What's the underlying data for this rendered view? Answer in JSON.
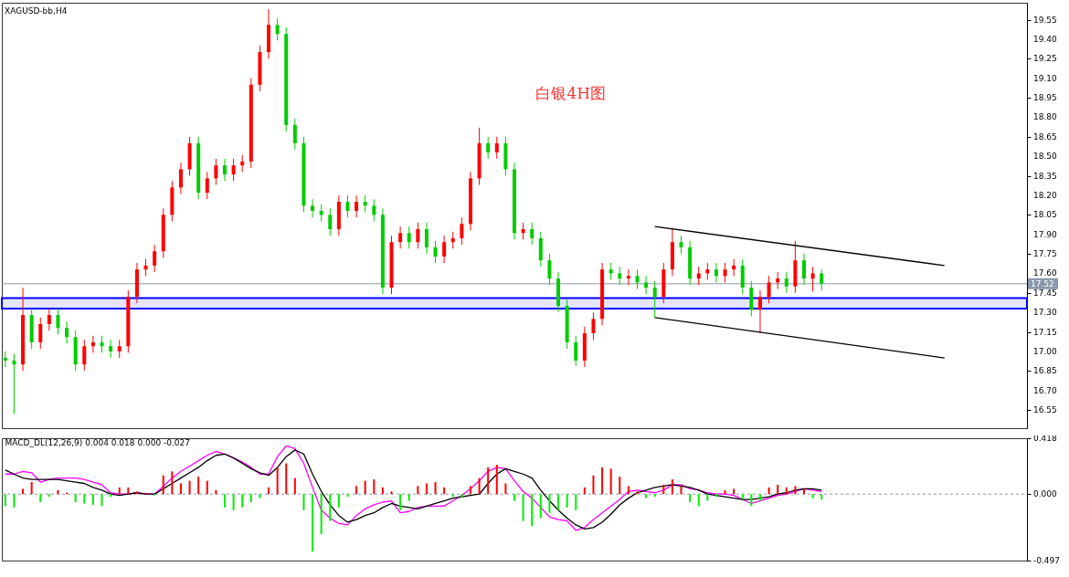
{
  "chart_data": [
    {
      "type": "candlestick",
      "title": "XAGUSD-bb,H4",
      "annotations": [
        "白银4H图"
      ],
      "categories": [
        null,
        null,
        null,
        null,
        null,
        null,
        null,
        null,
        null,
        null,
        null,
        null,
        null,
        null,
        null,
        null,
        null,
        null,
        null,
        null,
        null,
        null,
        null,
        null,
        null,
        null,
        null,
        null,
        null,
        null,
        null,
        null,
        null,
        null,
        null,
        null,
        null,
        null,
        null,
        null,
        null,
        null,
        null,
        null,
        null,
        null,
        null,
        null,
        null,
        null,
        null,
        null,
        null,
        null,
        null,
        null,
        null,
        null,
        null,
        null,
        null,
        null,
        null,
        null,
        null,
        null,
        null,
        null,
        null,
        null,
        null,
        null,
        null,
        null,
        null,
        null,
        null,
        null,
        null,
        null,
        null,
        null,
        null,
        null,
        null,
        null,
        null,
        null,
        null,
        null,
        null,
        null,
        null,
        null,
        null,
        null,
        null,
        null,
        null,
        null,
        null,
        null,
        null,
        null,
        null,
        null,
        null,
        null,
        null,
        null,
        null,
        null,
        null,
        null,
        null,
        null,
        null
      ],
      "ohlc": [
        [
          16.95,
          17.0,
          16.88,
          16.93
        ],
        [
          16.93,
          16.98,
          16.52,
          16.9
        ],
        [
          16.9,
          17.49,
          16.85,
          17.28
        ],
        [
          17.28,
          17.33,
          17.02,
          17.07
        ],
        [
          17.07,
          17.26,
          17.02,
          17.21
        ],
        [
          17.21,
          17.33,
          17.16,
          17.28
        ],
        [
          17.28,
          17.33,
          17.13,
          17.18
        ],
        [
          17.18,
          17.23,
          17.06,
          17.11
        ],
        [
          17.11,
          17.16,
          16.85,
          16.9
        ],
        [
          16.9,
          17.09,
          16.85,
          17.04
        ],
        [
          17.04,
          17.12,
          16.99,
          17.07
        ],
        [
          17.07,
          17.12,
          16.99,
          17.04
        ],
        [
          17.04,
          17.09,
          16.95,
          17.0
        ],
        [
          17.0,
          17.09,
          16.95,
          17.04
        ],
        [
          17.04,
          17.47,
          16.99,
          17.42
        ],
        [
          17.42,
          17.68,
          17.37,
          17.63
        ],
        [
          17.63,
          17.71,
          17.58,
          17.66
        ],
        [
          17.66,
          17.82,
          17.61,
          17.77
        ],
        [
          17.77,
          18.1,
          17.72,
          18.05
        ],
        [
          18.05,
          18.31,
          18.0,
          18.26
        ],
        [
          18.26,
          18.45,
          18.21,
          18.4
        ],
        [
          18.4,
          18.65,
          18.35,
          18.6
        ],
        [
          18.6,
          18.65,
          18.17,
          18.22
        ],
        [
          18.22,
          18.38,
          18.17,
          18.33
        ],
        [
          18.33,
          18.48,
          18.28,
          18.43
        ],
        [
          18.43,
          18.48,
          18.31,
          18.36
        ],
        [
          18.36,
          18.48,
          18.31,
          18.43
        ],
        [
          18.43,
          18.51,
          18.38,
          18.46
        ],
        [
          18.46,
          19.1,
          18.41,
          19.05
        ],
        [
          19.05,
          19.35,
          19.0,
          19.3
        ],
        [
          19.3,
          19.63,
          19.25,
          19.51
        ],
        [
          19.51,
          19.56,
          19.39,
          19.44
        ],
        [
          19.44,
          19.49,
          18.69,
          18.74
        ],
        [
          18.74,
          18.79,
          18.55,
          18.6
        ],
        [
          18.6,
          18.65,
          18.07,
          18.12
        ],
        [
          18.12,
          18.17,
          18.03,
          18.08
        ],
        [
          18.08,
          18.13,
          18.0,
          18.05
        ],
        [
          18.05,
          18.1,
          17.89,
          17.94
        ],
        [
          17.94,
          18.2,
          17.89,
          18.15
        ],
        [
          18.15,
          18.2,
          18.03,
          18.08
        ],
        [
          18.08,
          18.2,
          18.03,
          18.15
        ],
        [
          18.15,
          18.2,
          18.07,
          18.12
        ],
        [
          18.12,
          18.17,
          18.0,
          18.05
        ],
        [
          18.05,
          18.1,
          17.44,
          17.49
        ],
        [
          17.49,
          17.89,
          17.44,
          17.84
        ],
        [
          17.84,
          17.96,
          17.79,
          17.91
        ],
        [
          17.91,
          17.96,
          17.79,
          17.84
        ],
        [
          17.84,
          17.99,
          17.79,
          17.94
        ],
        [
          17.94,
          17.99,
          17.75,
          17.8
        ],
        [
          17.8,
          17.85,
          17.68,
          17.73
        ],
        [
          17.73,
          17.89,
          17.68,
          17.84
        ],
        [
          17.84,
          17.92,
          17.79,
          17.87
        ],
        [
          17.87,
          18.03,
          17.82,
          17.98
        ],
        [
          17.98,
          18.38,
          17.93,
          18.33
        ],
        [
          18.33,
          18.72,
          18.28,
          18.6
        ],
        [
          18.6,
          18.65,
          18.48,
          18.53
        ],
        [
          18.53,
          18.65,
          18.48,
          18.6
        ],
        [
          18.6,
          18.65,
          18.35,
          18.4
        ],
        [
          18.4,
          18.45,
          17.86,
          17.91
        ],
        [
          17.91,
          17.99,
          17.86,
          17.94
        ],
        [
          17.94,
          17.99,
          17.82,
          17.87
        ],
        [
          17.87,
          17.92,
          17.65,
          17.7
        ],
        [
          17.7,
          17.75,
          17.51,
          17.56
        ],
        [
          17.56,
          17.61,
          17.3,
          17.35
        ],
        [
          17.35,
          17.4,
          17.02,
          17.07
        ],
        [
          17.07,
          17.12,
          16.89,
          16.93
        ],
        [
          16.93,
          17.19,
          16.88,
          17.14
        ],
        [
          17.14,
          17.3,
          17.09,
          17.25
        ],
        [
          17.25,
          17.68,
          17.2,
          17.63
        ],
        [
          17.63,
          17.68,
          17.55,
          17.6
        ],
        [
          17.6,
          17.65,
          17.51,
          17.56
        ],
        [
          17.56,
          17.63,
          17.51,
          17.58
        ],
        [
          17.58,
          17.63,
          17.48,
          17.53
        ],
        [
          17.53,
          17.58,
          17.44,
          17.49
        ],
        [
          17.49,
          17.54,
          17.26,
          17.42
        ],
        [
          17.42,
          17.68,
          17.37,
          17.63
        ],
        [
          17.63,
          17.95,
          17.58,
          17.84
        ],
        [
          17.84,
          17.89,
          17.75,
          17.8
        ],
        [
          17.8,
          17.85,
          17.51,
          17.56
        ],
        [
          17.56,
          17.65,
          17.51,
          17.6
        ],
        [
          17.6,
          17.68,
          17.55,
          17.63
        ],
        [
          17.63,
          17.68,
          17.53,
          17.58
        ],
        [
          17.58,
          17.68,
          17.53,
          17.63
        ],
        [
          17.63,
          17.71,
          17.58,
          17.66
        ],
        [
          17.66,
          17.71,
          17.44,
          17.49
        ],
        [
          17.49,
          17.54,
          17.27,
          17.32
        ],
        [
          17.32,
          17.47,
          17.14,
          17.42
        ],
        [
          17.42,
          17.58,
          17.37,
          17.53
        ],
        [
          17.53,
          17.61,
          17.48,
          17.56
        ],
        [
          17.56,
          17.61,
          17.45,
          17.5
        ],
        [
          17.5,
          17.85,
          17.45,
          17.7
        ],
        [
          17.7,
          17.75,
          17.51,
          17.56
        ],
        [
          17.56,
          17.65,
          17.46,
          17.6
        ],
        [
          17.6,
          17.63,
          17.47,
          17.52
        ],
        null,
        null,
        null,
        null,
        null,
        null,
        null,
        null,
        null,
        null,
        null,
        null,
        null,
        null,
        null,
        null,
        null,
        null,
        null,
        null,
        null,
        null,
        null
      ],
      "colors": [
        "#00cc00",
        "#00cc00",
        "#ff0000",
        "#00cc00",
        "#ff0000",
        "#ff0000",
        "#00cc00",
        "#00cc00",
        "#00cc00",
        "#ff0000",
        "#ff0000",
        "#00cc00",
        "#00cc00",
        "#ff0000",
        "#ff0000",
        "#ff0000",
        "#ff0000",
        "#ff0000",
        "#ff0000",
        "#ff0000",
        "#ff0000",
        "#ff0000",
        "#00cc00",
        "#ff0000",
        "#ff0000",
        "#00cc00",
        "#ff0000",
        "#ff0000",
        "#ff0000",
        "#ff0000",
        "#ff0000",
        "#00cc00",
        "#00cc00",
        "#00cc00",
        "#00cc00",
        "#00cc00",
        "#00cc00",
        "#00cc00",
        "#ff0000",
        "#00cc00",
        "#ff0000",
        "#00cc00",
        "#00cc00",
        "#00cc00",
        "#ff0000",
        "#ff0000",
        "#00cc00",
        "#ff0000",
        "#00cc00",
        "#00cc00",
        "#ff0000",
        "#ff0000",
        "#ff0000",
        "#ff0000",
        "#ff0000",
        "#00cc00",
        "#ff0000",
        "#00cc00",
        "#00cc00",
        "#ff0000",
        "#00cc00",
        "#00cc00",
        "#00cc00",
        "#00cc00",
        "#00cc00",
        "#00cc00",
        "#ff0000",
        "#ff0000",
        "#ff0000",
        "#00cc00",
        "#00cc00",
        "#ff0000",
        "#00cc00",
        "#00cc00",
        "#00cc00",
        "#ff0000",
        "#ff0000",
        "#00cc00",
        "#00cc00",
        "#ff0000",
        "#ff0000",
        "#00cc00",
        "#ff0000",
        "#ff0000",
        "#00cc00",
        "#00cc00",
        "#ff0000",
        "#ff0000",
        "#ff0000",
        "#00cc00",
        "#ff0000",
        "#00cc00",
        "#ff0000",
        "#00cc00",
        null,
        null,
        null,
        null,
        null,
        null,
        null,
        null,
        null,
        null,
        null,
        null,
        null,
        null,
        null,
        null,
        null,
        null,
        null,
        null,
        null,
        null,
        null
      ],
      "series": [
        {
          "type": "line",
          "color": "#000000",
          "values": [
            null,
            null,
            null,
            null,
            null,
            null,
            null,
            null,
            null,
            null,
            null,
            null,
            null,
            null,
            null,
            null,
            null,
            null,
            null,
            null,
            null,
            null,
            null,
            null,
            null,
            null,
            null,
            null,
            null,
            null,
            null,
            null,
            null,
            null,
            null,
            null,
            null,
            null,
            null,
            null,
            null,
            null,
            null,
            null,
            null,
            null,
            null,
            null,
            null,
            null,
            null,
            null,
            null,
            null,
            null,
            null,
            null,
            null,
            null,
            null,
            null,
            null,
            null,
            null,
            null,
            null,
            null,
            null,
            null,
            null,
            null,
            null,
            null,
            null,
            17.96,
            null,
            null,
            null,
            null,
            null,
            null,
            null,
            null,
            null,
            null,
            null,
            null,
            null,
            null,
            null,
            null,
            null,
            null,
            null,
            null,
            null,
            null,
            null,
            null,
            null,
            null,
            null,
            null,
            null,
            null,
            null,
            null,
            17.66,
            null,
            null,
            null,
            null,
            null,
            null,
            null,
            null,
            null
          ]
        },
        {
          "type": "line",
          "color": "#000000",
          "values": [
            null,
            null,
            null,
            null,
            null,
            null,
            null,
            null,
            null,
            null,
            null,
            null,
            null,
            null,
            null,
            null,
            null,
            null,
            null,
            null,
            null,
            null,
            null,
            null,
            null,
            null,
            null,
            null,
            null,
            null,
            null,
            null,
            null,
            null,
            null,
            null,
            null,
            null,
            null,
            null,
            null,
            null,
            null,
            null,
            null,
            null,
            null,
            null,
            null,
            null,
            null,
            null,
            null,
            null,
            null,
            null,
            null,
            null,
            null,
            null,
            null,
            null,
            null,
            null,
            null,
            null,
            null,
            null,
            null,
            null,
            null,
            null,
            null,
            null,
            17.26,
            null,
            null,
            null,
            null,
            null,
            null,
            null,
            null,
            null,
            null,
            null,
            null,
            null,
            null,
            null,
            null,
            null,
            null,
            null,
            null,
            null,
            null,
            null,
            null,
            null,
            null,
            null,
            null,
            null,
            null,
            null,
            null,
            16.95,
            null,
            null,
            null,
            null,
            null,
            null,
            null,
            null,
            null
          ]
        }
      ],
      "ylim": [
        16.41,
        19.68
      ],
      "yticks": [
        16.55,
        {
          "value": 16.7,
          "label": "16.70"
        },
        16.85,
        {
          "value": 17,
          "label": "17.00"
        },
        17.15,
        {
          "value": 17.3,
          "label": "17.30"
        },
        17.45,
        {
          "value": 17.6,
          "label": "17.60"
        },
        17.75,
        {
          "value": 17.9,
          "label": "17.90"
        },
        18.05,
        {
          "value": 18.2,
          "label": "18.20"
        },
        18.35,
        {
          "value": 18.5,
          "label": "18.50"
        },
        18.65,
        {
          "value": 18.8,
          "label": "18.80"
        },
        18.95,
        {
          "value": 19.1,
          "label": "19.10"
        },
        19.25,
        {
          "value": 19.4,
          "label": "19.40"
        },
        19.55
      ],
      "ref_lines": [
        {
          "axis": "y",
          "value": 17.52,
          "label": "17.52",
          "color": "#8899aa"
        }
      ],
      "bands": [
        {
          "axis": "y",
          "from": 17.33,
          "to": 17.41,
          "color": "#0000ff"
        }
      ],
      "tick_labels": "y"
    },
    {
      "type": "bar",
      "title": "MACD_DL(12,26,9) 0.004 0.018 0.000 -0.027",
      "categories": [
        null,
        null,
        null,
        null,
        null,
        null,
        null,
        null,
        null,
        null,
        null,
        null,
        null,
        null,
        null,
        null,
        null,
        null,
        null,
        null,
        null,
        null,
        null,
        null,
        null,
        null,
        null,
        null,
        null,
        null,
        null,
        null,
        null,
        null,
        null,
        null,
        null,
        null,
        null,
        null,
        null,
        null,
        null,
        null,
        null,
        null,
        null,
        null,
        null,
        null,
        null,
        null,
        null,
        null,
        null,
        null,
        null,
        null,
        null,
        null,
        null,
        null,
        null,
        null,
        null,
        null,
        null,
        null,
        null,
        null,
        null,
        null,
        null,
        null,
        null,
        null,
        null,
        null,
        null,
        null,
        null,
        null,
        null,
        null,
        null,
        null,
        null,
        null,
        null,
        null,
        null,
        null,
        null,
        null,
        null,
        null,
        null,
        null,
        null,
        null,
        null,
        null,
        null,
        null,
        null,
        null,
        null,
        null,
        null,
        null,
        null,
        null,
        null,
        null,
        null,
        null,
        null
      ],
      "series": [
        {
          "type": "bar",
          "values": [
            -0.09,
            -0.1,
            0.04,
            0.09,
            -0.06,
            -0.02,
            0.03,
            0.01,
            -0.06,
            -0.07,
            -0.08,
            -0.09,
            -0.02,
            0.05,
            0.05,
            0.02,
            0.01,
            -0.01,
            0.14,
            0.17,
            0.08,
            0.1,
            0.13,
            0.1,
            0.03,
            -0.1,
            -0.12,
            -0.1,
            -0.06,
            -0.03,
            0.05,
            0.2,
            0.23,
            0.12,
            -0.12,
            -0.43,
            -0.3,
            -0.2,
            -0.1,
            -0.02,
            0.06,
            0.1,
            0.11,
            0.05,
            0.02,
            -0.12,
            -0.05,
            0.06,
            0.08,
            0.09,
            0.05,
            -0.02,
            -0.03,
            0.06,
            0.12,
            0.2,
            0.22,
            0.08,
            -0.05,
            -0.2,
            -0.24,
            -0.18,
            -0.14,
            -0.12,
            -0.1,
            -0.12,
            0.05,
            0.14,
            0.2,
            0.19,
            0.13,
            0.06,
            0.02,
            -0.03,
            -0.02,
            0.07,
            0.11,
            0.06,
            -0.06,
            -0.09,
            -0.05,
            -0.02,
            0.03,
            0.04,
            -0.04,
            -0.09,
            -0.05,
            0.05,
            0.07,
            0.05,
            0.06,
            0.04,
            -0.03,
            -0.04,
            null,
            null,
            null,
            null,
            null,
            null,
            null,
            null,
            null,
            null,
            null,
            null,
            null,
            null,
            null,
            null,
            null,
            null,
            null,
            null,
            null,
            null,
            null
          ],
          "colors": [
            "#00ee00",
            "#00ee00",
            "#ff0000",
            "#ff0000",
            "#00ee00",
            "#00ee00",
            "#ff0000",
            "#ff0000",
            "#00ee00",
            "#00ee00",
            "#00ee00",
            "#00ee00",
            "#00ee00",
            "#ff0000",
            "#ff0000",
            "#ff0000",
            "#ff0000",
            "#00ee00",
            "#ff0000",
            "#ff0000",
            "#ff0000",
            "#ff0000",
            "#ff0000",
            "#ff0000",
            "#ff0000",
            "#00ee00",
            "#00ee00",
            "#00ee00",
            "#00ee00",
            "#00ee00",
            "#ff0000",
            "#ff0000",
            "#ff0000",
            "#ff0000",
            "#00ee00",
            "#00ee00",
            "#00ee00",
            "#00ee00",
            "#00ee00",
            "#00ee00",
            "#ff0000",
            "#ff0000",
            "#ff0000",
            "#ff0000",
            "#ff0000",
            "#00ee00",
            "#00ee00",
            "#ff0000",
            "#ff0000",
            "#ff0000",
            "#ff0000",
            "#00ee00",
            "#00ee00",
            "#ff0000",
            "#ff0000",
            "#ff0000",
            "#ff0000",
            "#ff0000",
            "#00ee00",
            "#00ee00",
            "#00ee00",
            "#00ee00",
            "#00ee00",
            "#00ee00",
            "#00ee00",
            "#00ee00",
            "#ff0000",
            "#ff0000",
            "#ff0000",
            "#ff0000",
            "#ff0000",
            "#ff0000",
            "#ff0000",
            "#00ee00",
            "#00ee00",
            "#ff0000",
            "#ff0000",
            "#ff0000",
            "#00ee00",
            "#00ee00",
            "#00ee00",
            "#00ee00",
            "#ff0000",
            "#ff0000",
            "#00ee00",
            "#00ee00",
            "#00ee00",
            "#ff0000",
            "#ff0000",
            "#ff0000",
            "#ff0000",
            "#ff0000",
            "#00ee00",
            "#00ee00",
            null,
            null,
            null,
            null,
            null,
            null,
            null,
            null,
            null,
            null,
            null,
            null,
            null,
            null,
            null,
            null,
            null,
            null,
            null,
            null,
            null,
            null,
            null
          ]
        },
        {
          "type": "line",
          "color": "#ff00ff",
          "values": [
            0.15,
            0.15,
            0.17,
            0.16,
            0.09,
            0.11,
            0.12,
            0.12,
            0.12,
            0.11,
            0.09,
            0.07,
            0.01,
            0.0,
            0.0,
            0.01,
            0.0,
            0.0,
            0.06,
            0.12,
            0.17,
            0.21,
            0.25,
            0.29,
            0.32,
            0.3,
            0.27,
            0.24,
            0.2,
            0.15,
            0.15,
            0.28,
            0.36,
            0.34,
            0.23,
            0.05,
            -0.12,
            -0.18,
            -0.22,
            -0.23,
            -0.16,
            -0.11,
            -0.08,
            -0.06,
            -0.05,
            -0.14,
            -0.13,
            -0.1,
            -0.09,
            -0.09,
            -0.09,
            -0.05,
            -0.01,
            0.04,
            0.1,
            0.17,
            0.2,
            0.19,
            0.1,
            0.02,
            -0.03,
            -0.1,
            -0.17,
            -0.19,
            -0.2,
            -0.27,
            -0.25,
            -0.19,
            -0.14,
            -0.09,
            -0.04,
            0.02,
            0.03,
            0.02,
            0.01,
            0.03,
            0.07,
            0.07,
            0.04,
            0.03,
            0.01,
            0.0,
            0.0,
            -0.01,
            -0.04,
            -0.07,
            -0.05,
            -0.03,
            -0.01,
            0.0,
            0.02,
            0.04,
            0.03,
            0.02,
            null,
            null,
            null,
            null,
            null,
            null,
            null,
            null,
            null,
            null,
            null,
            null,
            null,
            null,
            null,
            null,
            null,
            null,
            null,
            null,
            null,
            null,
            null
          ]
        },
        {
          "type": "line",
          "color": "#000000",
          "values": [
            0.18,
            0.15,
            0.12,
            0.11,
            0.11,
            0.11,
            0.11,
            0.1,
            0.09,
            0.08,
            0.05,
            0.03,
            0.0,
            -0.01,
            0.0,
            0.01,
            0.0,
            0.0,
            0.04,
            0.08,
            0.12,
            0.16,
            0.2,
            0.25,
            0.29,
            0.3,
            0.27,
            0.23,
            0.19,
            0.16,
            0.14,
            0.2,
            0.28,
            0.33,
            0.3,
            0.15,
            0.02,
            -0.08,
            -0.16,
            -0.21,
            -0.19,
            -0.16,
            -0.14,
            -0.1,
            -0.07,
            -0.09,
            -0.1,
            -0.11,
            -0.09,
            -0.07,
            -0.05,
            -0.03,
            -0.02,
            -0.01,
            0.0,
            0.08,
            0.15,
            0.19,
            0.17,
            0.15,
            0.12,
            0.03,
            -0.05,
            -0.12,
            -0.18,
            -0.23,
            -0.26,
            -0.25,
            -0.21,
            -0.15,
            -0.08,
            -0.03,
            0.01,
            0.03,
            0.05,
            0.06,
            0.07,
            0.06,
            0.05,
            0.03,
            0.0,
            -0.01,
            -0.02,
            -0.03,
            -0.04,
            -0.04,
            -0.03,
            -0.02,
            0.0,
            0.01,
            0.03,
            0.04,
            0.04,
            0.03,
            null,
            null,
            null,
            null,
            null,
            null,
            null,
            null,
            null,
            null,
            null,
            null,
            null,
            null,
            null,
            null,
            null,
            null,
            null,
            null,
            null,
            null,
            null
          ]
        }
      ],
      "ylim": [
        -0.497,
        0.418
      ],
      "yticks": [
        0.418,
        {
          "value": 0,
          "label": "0.000"
        },
        -0.497
      ],
      "ref_lines": [
        {
          "axis": "y",
          "value": 0,
          "color": "#8899aa",
          "line_style": "dashed"
        }
      ],
      "tick_labels": "y"
    }
  ]
}
